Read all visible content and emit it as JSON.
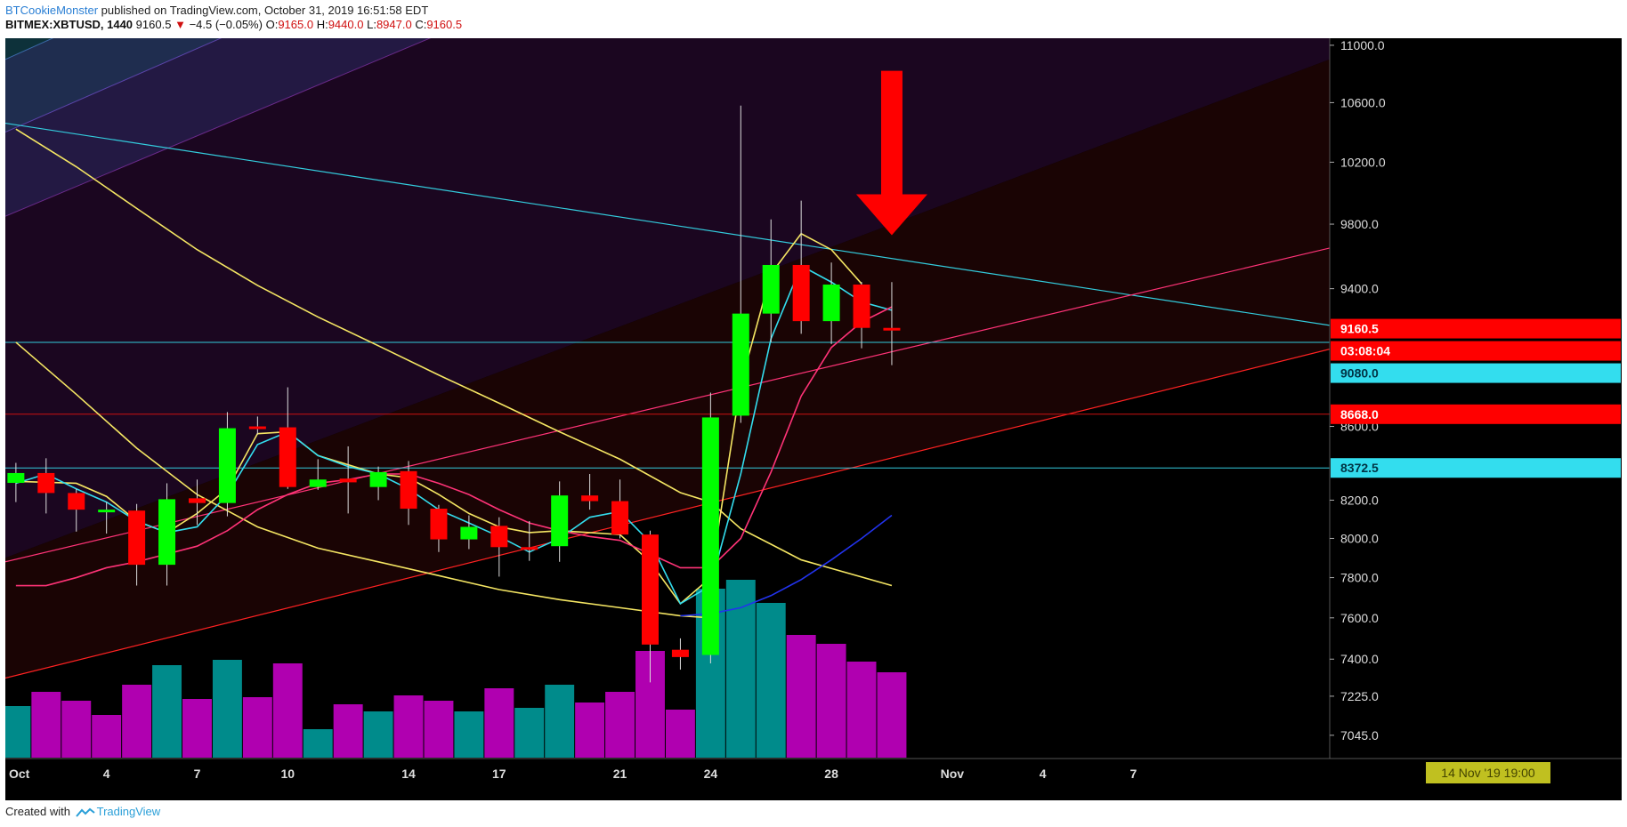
{
  "header": {
    "author": "BTCookieMonster",
    "published": " published on TradingView.com, October 31, 2019 16:51:58 EDT",
    "symbol": "BITMEX:XBTUSD, 1440",
    "last": "9160.5",
    "change": "−4.5 (−0.05%)",
    "o_label": "O:",
    "o": "9165.0",
    "h_label": "H:",
    "h": "9440.0",
    "l_label": "L:",
    "l": "8947.0",
    "c_label": "C:",
    "c": "9160.5"
  },
  "footer": {
    "created_with": "Created with",
    "brand": "TradingView"
  },
  "colors": {
    "background": "#000000",
    "up": "#00ff00",
    "down": "#ff0000",
    "vol_up": "#008b8b",
    "vol_down": "#b000b0",
    "ma_yellow": "#f5e663",
    "ma_cyan": "#33ddee",
    "ma_pink": "#ff3377",
    "ma_blue": "#2233ee",
    "hline": "#33ccdd",
    "support_line": "#cc1111",
    "arrow": "#ff0000"
  },
  "chart_data": {
    "type": "candlestick",
    "symbol": "BITMEX:XBTUSD",
    "interval": "1440",
    "ylim": [
      6940,
      11050
    ],
    "y_scale": "log",
    "y_ticks": [
      11000,
      10600,
      10200,
      9800,
      9400,
      8600,
      8200,
      8000,
      7800,
      7600,
      7400,
      7225,
      7045
    ],
    "y_tick_labels": [
      "11000.0",
      "10600.0",
      "10200.0",
      "9800.0",
      "9400.0",
      "8600.0",
      "8200.0",
      "8000.0",
      "7800.0",
      "7600.0",
      "7400.0",
      "7225.0",
      "7045.0"
    ],
    "x_ticks": [
      {
        "day": 0,
        "label": "Oct"
      },
      {
        "day": 3,
        "label": "4"
      },
      {
        "day": 6,
        "label": "7"
      },
      {
        "day": 9,
        "label": "10"
      },
      {
        "day": 13,
        "label": "14"
      },
      {
        "day": 16,
        "label": "17"
      },
      {
        "day": 20,
        "label": "21"
      },
      {
        "day": 23,
        "label": "24"
      },
      {
        "day": 27,
        "label": "28"
      },
      {
        "day": 31,
        "label": "Nov"
      },
      {
        "day": 34,
        "label": "4"
      },
      {
        "day": 37,
        "label": "7"
      }
    ],
    "x_range_days": [
      -0.35,
      43.5
    ],
    "candles": [
      {
        "day": 0,
        "o": 8292,
        "h": 8400,
        "l": 8190,
        "c": 8345
      },
      {
        "day": 1,
        "o": 8345,
        "h": 8425,
        "l": 8130,
        "c": 8238
      },
      {
        "day": 2,
        "o": 8238,
        "h": 8260,
        "l": 8035,
        "c": 8150
      },
      {
        "day": 3,
        "o": 8150,
        "h": 8190,
        "l": 8025,
        "c": 8150
      },
      {
        "day": 4,
        "o": 8145,
        "h": 8180,
        "l": 7760,
        "c": 7865
      },
      {
        "day": 5,
        "o": 7865,
        "h": 8290,
        "l": 7760,
        "c": 8205
      },
      {
        "day": 6,
        "o": 8210,
        "h": 8310,
        "l": 8070,
        "c": 8185
      },
      {
        "day": 7,
        "o": 8185,
        "h": 8680,
        "l": 8115,
        "c": 8590
      },
      {
        "day": 8,
        "o": 8600,
        "h": 8655,
        "l": 8555,
        "c": 8595
      },
      {
        "day": 9,
        "o": 8595,
        "h": 8820,
        "l": 8260,
        "c": 8270
      },
      {
        "day": 10,
        "o": 8270,
        "h": 8420,
        "l": 8255,
        "c": 8310
      },
      {
        "day": 11,
        "o": 8315,
        "h": 8490,
        "l": 8130,
        "c": 8295
      },
      {
        "day": 12,
        "o": 8270,
        "h": 8380,
        "l": 8200,
        "c": 8350
      },
      {
        "day": 13,
        "o": 8355,
        "h": 8410,
        "l": 8070,
        "c": 8155
      },
      {
        "day": 14,
        "o": 8155,
        "h": 8175,
        "l": 7930,
        "c": 7995
      },
      {
        "day": 15,
        "o": 7995,
        "h": 8120,
        "l": 7945,
        "c": 8060
      },
      {
        "day": 16,
        "o": 8065,
        "h": 8110,
        "l": 7805,
        "c": 7955
      },
      {
        "day": 17,
        "o": 7955,
        "h": 8090,
        "l": 7885,
        "c": 7950
      },
      {
        "day": 18,
        "o": 7960,
        "h": 8300,
        "l": 7880,
        "c": 8225
      },
      {
        "day": 19,
        "o": 8225,
        "h": 8340,
        "l": 8150,
        "c": 8195
      },
      {
        "day": 20,
        "o": 8195,
        "h": 8310,
        "l": 8000,
        "c": 8020
      },
      {
        "day": 21,
        "o": 8020,
        "h": 8040,
        "l": 7290,
        "c": 7470
      },
      {
        "day": 22,
        "o": 7445,
        "h": 7500,
        "l": 7350,
        "c": 7410
      },
      {
        "day": 23,
        "o": 7420,
        "h": 8790,
        "l": 7380,
        "c": 8650
      },
      {
        "day": 24,
        "o": 8660,
        "h": 10580,
        "l": 8620,
        "c": 9250
      },
      {
        "day": 25,
        "o": 9250,
        "h": 9830,
        "l": 9080,
        "c": 9545
      },
      {
        "day": 26,
        "o": 9545,
        "h": 9950,
        "l": 9130,
        "c": 9205
      },
      {
        "day": 27,
        "o": 9205,
        "h": 9560,
        "l": 9070,
        "c": 9425
      },
      {
        "day": 28,
        "o": 9425,
        "h": 9440,
        "l": 9045,
        "c": 9165
      },
      {
        "day": 29,
        "o": 9165,
        "h": 9440,
        "l": 8947,
        "c": 9160.5
      }
    ],
    "volume": [
      {
        "day": 0,
        "dir": "up",
        "v": 0.29
      },
      {
        "day": 1,
        "dir": "down",
        "v": 0.37
      },
      {
        "day": 2,
        "dir": "down",
        "v": 0.32
      },
      {
        "day": 3,
        "dir": "down",
        "v": 0.24
      },
      {
        "day": 4,
        "dir": "down",
        "v": 0.41
      },
      {
        "day": 5,
        "dir": "up",
        "v": 0.52
      },
      {
        "day": 6,
        "dir": "down",
        "v": 0.33
      },
      {
        "day": 7,
        "dir": "up",
        "v": 0.55
      },
      {
        "day": 8,
        "dir": "down",
        "v": 0.34
      },
      {
        "day": 9,
        "dir": "down",
        "v": 0.53
      },
      {
        "day": 10,
        "dir": "up",
        "v": 0.16
      },
      {
        "day": 11,
        "dir": "down",
        "v": 0.3
      },
      {
        "day": 12,
        "dir": "up",
        "v": 0.26
      },
      {
        "day": 13,
        "dir": "down",
        "v": 0.35
      },
      {
        "day": 14,
        "dir": "down",
        "v": 0.32
      },
      {
        "day": 15,
        "dir": "up",
        "v": 0.26
      },
      {
        "day": 16,
        "dir": "down",
        "v": 0.39
      },
      {
        "day": 17,
        "dir": "up",
        "v": 0.28
      },
      {
        "day": 18,
        "dir": "up",
        "v": 0.41
      },
      {
        "day": 19,
        "dir": "down",
        "v": 0.31
      },
      {
        "day": 20,
        "dir": "down",
        "v": 0.37
      },
      {
        "day": 21,
        "dir": "down",
        "v": 0.6
      },
      {
        "day": 22,
        "dir": "down",
        "v": 0.27
      },
      {
        "day": 23,
        "dir": "up",
        "v": 0.95
      },
      {
        "day": 24,
        "dir": "up",
        "v": 1.0
      },
      {
        "day": 25,
        "dir": "up",
        "v": 0.87
      },
      {
        "day": 26,
        "dir": "down",
        "v": 0.69
      },
      {
        "day": 27,
        "dir": "down",
        "v": 0.64
      },
      {
        "day": 28,
        "dir": "down",
        "v": 0.54
      },
      {
        "day": 29,
        "dir": "down",
        "v": 0.48
      }
    ],
    "moving_averages": [
      {
        "color": "#f5e663",
        "width": 1.6,
        "points": [
          [
            0,
            10420
          ],
          [
            2,
            10170
          ],
          [
            4,
            9900
          ],
          [
            6,
            9640
          ],
          [
            8,
            9420
          ],
          [
            10,
            9230
          ],
          [
            12,
            9060
          ],
          [
            14,
            8890
          ],
          [
            16,
            8730
          ],
          [
            18,
            8570
          ],
          [
            20,
            8420
          ],
          [
            22,
            8240
          ],
          [
            23,
            8190
          ],
          [
            24,
            8050
          ],
          [
            25,
            7970
          ],
          [
            26,
            7890
          ],
          [
            29,
            7760
          ]
        ]
      },
      {
        "color": "#f5e663",
        "width": 1.6,
        "points": [
          [
            0,
            9080
          ],
          [
            2,
            8780
          ],
          [
            4,
            8480
          ],
          [
            6,
            8230
          ],
          [
            8,
            8060
          ],
          [
            10,
            7950
          ],
          [
            12,
            7880
          ],
          [
            14,
            7810
          ],
          [
            16,
            7740
          ],
          [
            18,
            7690
          ],
          [
            20,
            7650
          ],
          [
            22,
            7610
          ],
          [
            23,
            7600
          ]
        ]
      },
      {
        "color": "#f5e663",
        "width": 1.6,
        "points": [
          [
            0,
            8300
          ],
          [
            2,
            8290
          ],
          [
            3,
            8220
          ],
          [
            4,
            8090
          ],
          [
            5,
            8030
          ],
          [
            6,
            8130
          ],
          [
            7,
            8260
          ],
          [
            8,
            8560
          ],
          [
            9,
            8570
          ],
          [
            10,
            8440
          ],
          [
            11,
            8390
          ],
          [
            12,
            8340
          ],
          [
            13,
            8320
          ],
          [
            14,
            8230
          ],
          [
            15,
            8130
          ],
          [
            16,
            8060
          ],
          [
            17,
            8030
          ],
          [
            18,
            8040
          ],
          [
            19,
            8030
          ],
          [
            20,
            8020
          ],
          [
            21,
            7880
          ],
          [
            22,
            7670
          ],
          [
            23,
            7800
          ],
          [
            24,
            8840
          ],
          [
            25,
            9490
          ],
          [
            26,
            9740
          ],
          [
            27,
            9640
          ],
          [
            28,
            9430
          ]
        ]
      },
      {
        "color": "#33ddee",
        "width": 1.6,
        "points": [
          [
            0,
            8290
          ],
          [
            1,
            8340
          ],
          [
            2,
            8260
          ],
          [
            3,
            8190
          ],
          [
            4,
            8090
          ],
          [
            5,
            8030
          ],
          [
            6,
            8060
          ],
          [
            7,
            8230
          ],
          [
            8,
            8500
          ],
          [
            9,
            8570
          ],
          [
            10,
            8440
          ],
          [
            11,
            8380
          ],
          [
            12,
            8340
          ],
          [
            13,
            8260
          ],
          [
            14,
            8150
          ],
          [
            15,
            8080
          ],
          [
            16,
            8010
          ],
          [
            17,
            7930
          ],
          [
            18,
            8000
          ],
          [
            19,
            8110
          ],
          [
            20,
            8140
          ],
          [
            21,
            7980
          ],
          [
            22,
            7670
          ],
          [
            23,
            7760
          ],
          [
            24,
            8340
          ],
          [
            25,
            9100
          ],
          [
            26,
            9540
          ],
          [
            27,
            9440
          ],
          [
            28,
            9320
          ],
          [
            29,
            9270
          ]
        ]
      },
      {
        "color": "#ff3377",
        "width": 1.6,
        "points": [
          [
            0,
            7760
          ],
          [
            1,
            7760
          ],
          [
            2,
            7800
          ],
          [
            3,
            7850
          ],
          [
            4,
            7880
          ],
          [
            5,
            7920
          ],
          [
            6,
            7960
          ],
          [
            7,
            8040
          ],
          [
            8,
            8150
          ],
          [
            9,
            8230
          ],
          [
            10,
            8290
          ],
          [
            11,
            8310
          ],
          [
            12,
            8340
          ],
          [
            13,
            8340
          ],
          [
            14,
            8290
          ],
          [
            15,
            8230
          ],
          [
            16,
            8150
          ],
          [
            17,
            8080
          ],
          [
            18,
            8040
          ],
          [
            19,
            8010
          ],
          [
            20,
            7990
          ],
          [
            21,
            7920
          ],
          [
            22,
            7850
          ],
          [
            23,
            7850
          ],
          [
            24,
            8000
          ],
          [
            25,
            8350
          ],
          [
            26,
            8770
          ],
          [
            27,
            9050
          ],
          [
            28,
            9200
          ],
          [
            29,
            9290
          ]
        ]
      },
      {
        "color": "#2233ee",
        "width": 1.6,
        "points": [
          [
            22,
            7610
          ],
          [
            23,
            7620
          ],
          [
            24,
            7650
          ],
          [
            25,
            7710
          ],
          [
            26,
            7790
          ],
          [
            27,
            7890
          ],
          [
            28,
            8000
          ],
          [
            29,
            8120
          ]
        ]
      }
    ],
    "horizontal_lines": [
      {
        "price": 9080,
        "color": "#33ccdd"
      },
      {
        "price": 8372.5,
        "color": "#33ccdd"
      },
      {
        "price": 8668,
        "color": "#cc1111"
      }
    ],
    "price_labels": [
      {
        "price": 9160.5,
        "text": "9160.5",
        "bg": "#ff0000",
        "fg": "#ffffff"
      },
      {
        "price": 8970,
        "text": "03:08:04",
        "bg": "#ff0000",
        "fg": "#ffffff"
      },
      {
        "price": 8970,
        "text": "9080.0",
        "bg": "#33ddee",
        "fg": "#003344"
      },
      {
        "price": 8668,
        "text": "8668.0",
        "bg": "#ff0000",
        "fg": "#ffffff"
      },
      {
        "price": 8372.5,
        "text": "8372.5",
        "bg": "#33ddee",
        "fg": "#003344"
      }
    ],
    "trend_lines": [
      {
        "color": "#33ccdd",
        "p1": [
          -0.35,
          10460
        ],
        "p2": [
          43.5,
          9180
        ]
      },
      {
        "color": "#ff3377",
        "p1": [
          -0.35,
          7880
        ],
        "p2": [
          43.5,
          9650
        ]
      },
      {
        "color": "#ff2222",
        "p1": [
          -0.35,
          7310
        ],
        "p2": [
          43.5,
          9040
        ]
      }
    ],
    "down_arrow": {
      "day": 29,
      "from": 10820,
      "to": 9730,
      "color": "#ff0000"
    },
    "time_label": {
      "text": "14 Nov '19   19:00",
      "bg": "#c0c020",
      "fg": "#444400"
    }
  }
}
